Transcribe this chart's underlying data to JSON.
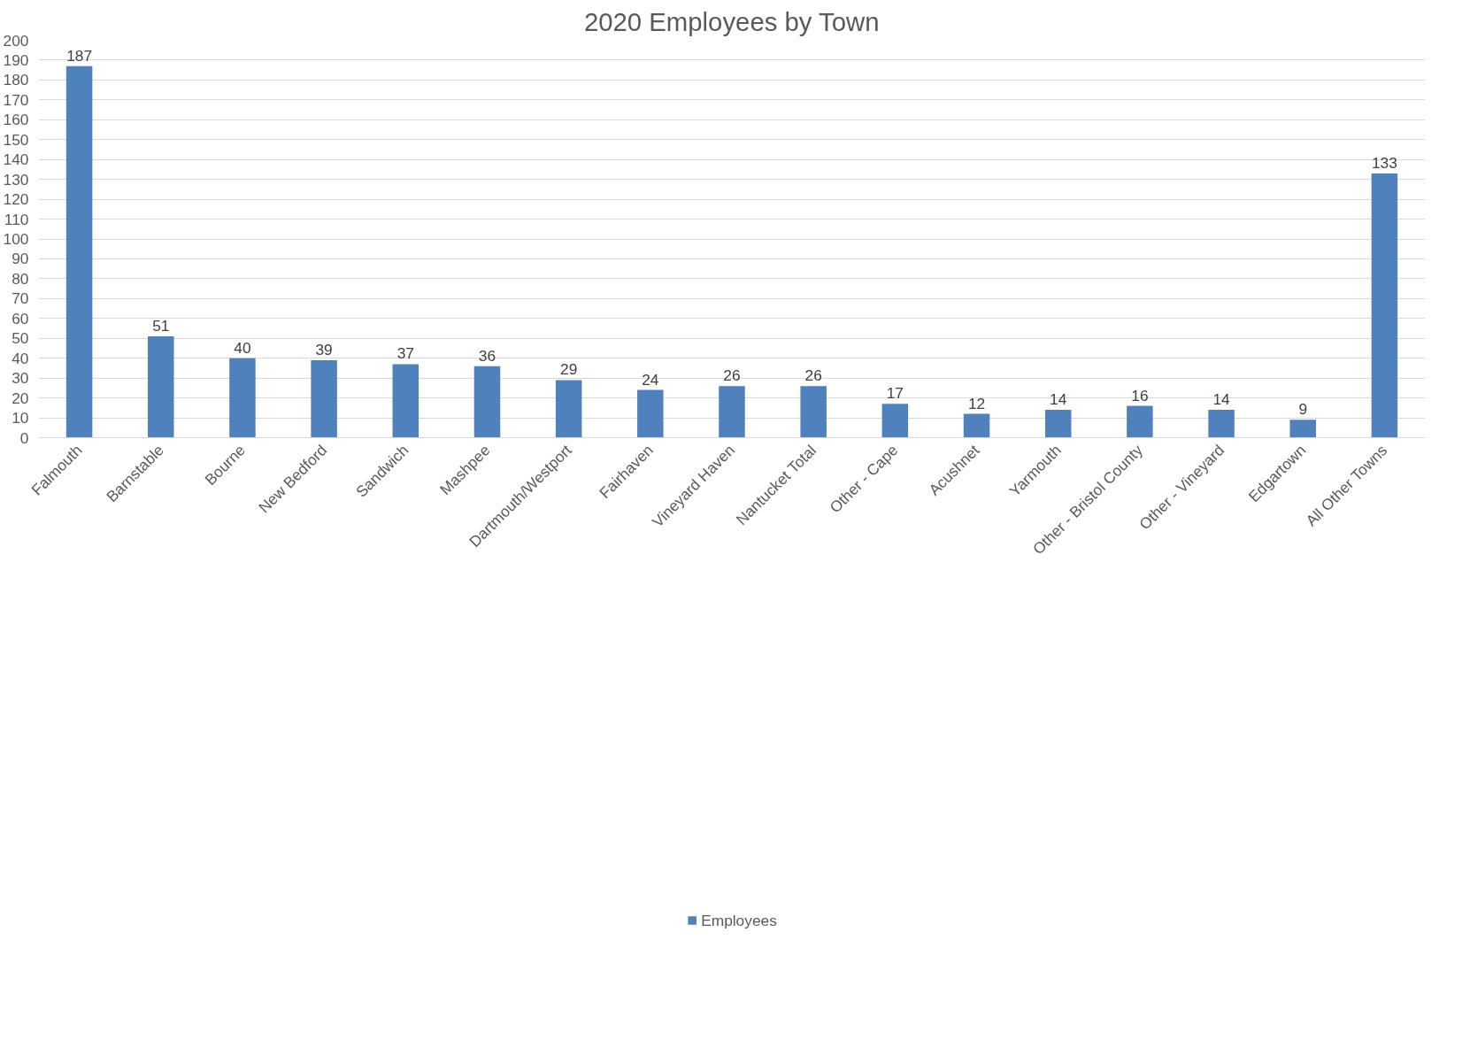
{
  "chart_data": {
    "type": "bar",
    "title": "2020 Employees by Town",
    "categories": [
      "Falmouth",
      "Barnstable",
      "Bourne",
      "New Bedford",
      "Sandwich",
      "Mashpee",
      "Dartmouth/Westport",
      "Fairhaven",
      "Vineyard Haven",
      "Nantucket Total",
      "Other - Cape",
      "Acushnet",
      "Yarmouth",
      "Other - Bristol County",
      "Other - Vineyard",
      "Edgartown",
      "All Other Towns"
    ],
    "series": [
      {
        "name": "Employees",
        "color": "#4f81bd",
        "values": [
          187,
          51,
          40,
          39,
          37,
          36,
          29,
          24,
          26,
          26,
          17,
          12,
          14,
          16,
          14,
          9,
          133
        ]
      }
    ],
    "ylim": [
      0,
      200
    ],
    "yticks": [
      0,
      10,
      20,
      30,
      40,
      50,
      60,
      70,
      80,
      90,
      100,
      110,
      120,
      130,
      140,
      150,
      160,
      170,
      180,
      190,
      200
    ],
    "grid": "y",
    "legend": "bottom",
    "data_labels": true
  }
}
